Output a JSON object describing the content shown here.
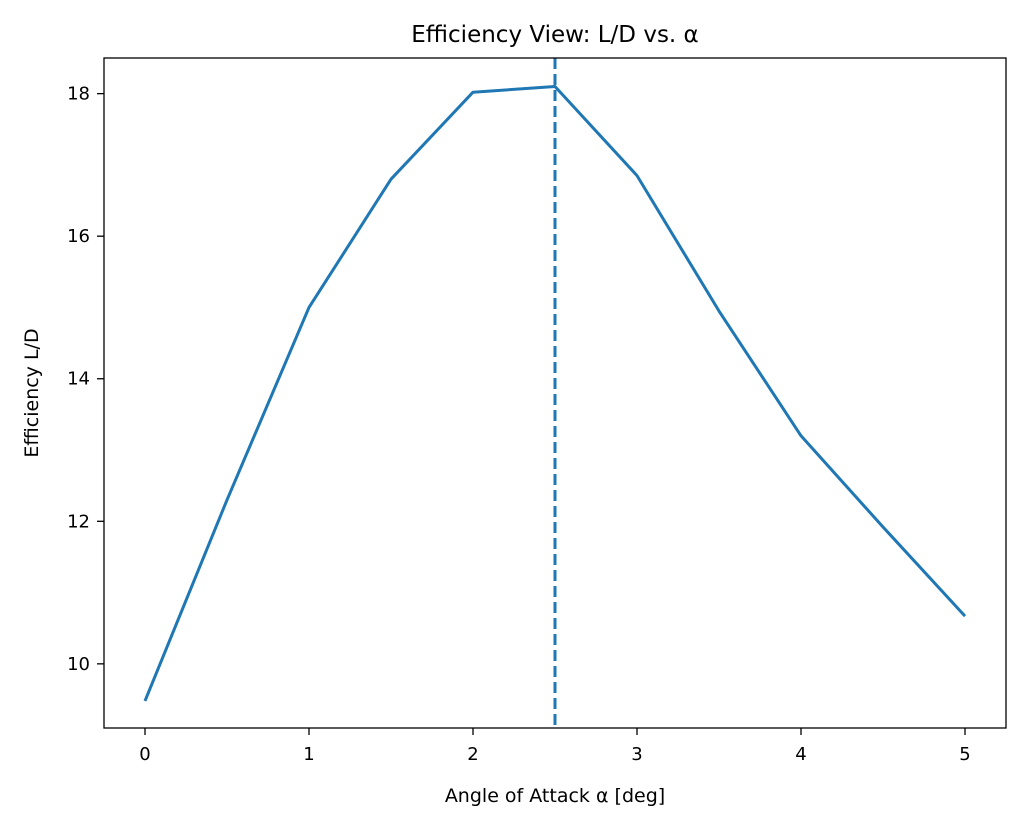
{
  "chart_data": {
    "type": "line",
    "title": "Efficiency View: L/D vs. α",
    "xlabel": "Angle of Attack α [deg]",
    "ylabel": "Efficiency L/D",
    "xlim": [
      -0.25,
      5.25
    ],
    "ylim": [
      9.1,
      18.5
    ],
    "xticks": [
      0,
      1,
      2,
      3,
      4,
      5
    ],
    "yticks": [
      10,
      12,
      14,
      16,
      18
    ],
    "grid": false,
    "series": [
      {
        "x": [
          0,
          0.5,
          1,
          1.5,
          2,
          2.5,
          3,
          3.5,
          4,
          4.5,
          5
        ],
        "y": [
          9.48,
          12.3,
          15.0,
          16.8,
          18.02,
          18.1,
          16.85,
          14.95,
          13.2,
          11.92,
          10.67
        ],
        "color": "#1f77b4"
      }
    ],
    "annotations": [
      {
        "type": "vline",
        "x": 2.5,
        "style": "dashed",
        "color": "#1f77b4"
      }
    ]
  }
}
